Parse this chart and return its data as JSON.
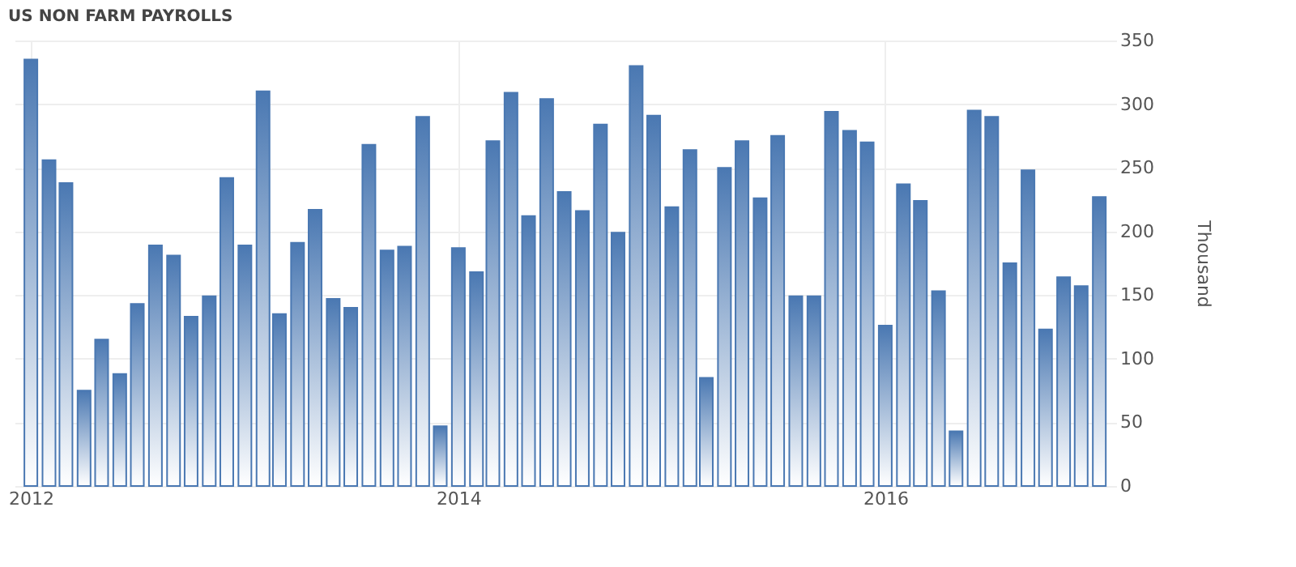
{
  "chart_data": {
    "type": "bar",
    "title": "US NON FARM PAYROLLS",
    "ylabel": "Thousand",
    "x": [
      "2012-01",
      "2012-02",
      "2012-03",
      "2012-04",
      "2012-05",
      "2012-06",
      "2012-07",
      "2012-08",
      "2012-09",
      "2012-10",
      "2012-11",
      "2012-12",
      "2013-01",
      "2013-02",
      "2013-03",
      "2013-04",
      "2013-05",
      "2013-06",
      "2013-07",
      "2013-08",
      "2013-09",
      "2013-10",
      "2013-11",
      "2013-12",
      "2014-01",
      "2014-02",
      "2014-03",
      "2014-04",
      "2014-05",
      "2014-06",
      "2014-07",
      "2014-08",
      "2014-09",
      "2014-10",
      "2014-11",
      "2014-12",
      "2015-01",
      "2015-02",
      "2015-03",
      "2015-04",
      "2015-05",
      "2015-06",
      "2015-07",
      "2015-08",
      "2015-09",
      "2015-10",
      "2015-11",
      "2015-12",
      "2016-01",
      "2016-02",
      "2016-03",
      "2016-04",
      "2016-05",
      "2016-06",
      "2016-07",
      "2016-08",
      "2016-09",
      "2016-10",
      "2016-11",
      "2016-12",
      "2017-01"
    ],
    "values": [
      335,
      256,
      238,
      75,
      115,
      88,
      143,
      189,
      181,
      133,
      149,
      242,
      189,
      310,
      135,
      191,
      217,
      147,
      140,
      268,
      185,
      188,
      290,
      47,
      187,
      168,
      271,
      309,
      212,
      304,
      231,
      216,
      284,
      199,
      330,
      291,
      219,
      264,
      85,
      250,
      271,
      226,
      275,
      149,
      149,
      294,
      279,
      270,
      126,
      237,
      224,
      153,
      43,
      295,
      290,
      175,
      248,
      123,
      164,
      157,
      227
    ],
    "color": "#4a78b2",
    "xlim": [
      "2011-12-18",
      "2017-01-16"
    ],
    "xticks": [
      "2012",
      "2014",
      "2016"
    ],
    "ylim": [
      0,
      350
    ],
    "yticks": [
      0,
      50,
      100,
      150,
      200,
      250,
      300,
      350
    ],
    "grid": true
  }
}
